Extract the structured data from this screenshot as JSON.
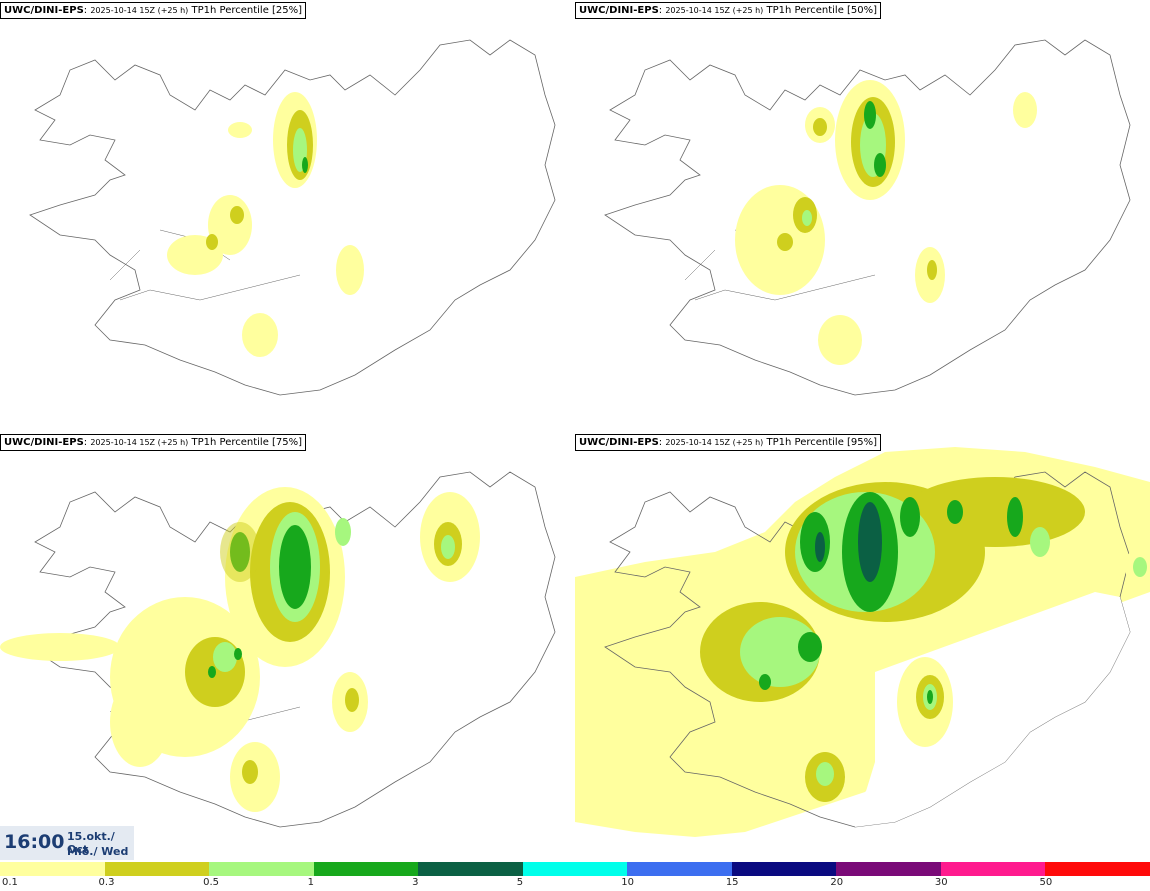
{
  "panels": [
    {
      "model": "UWC/DINI-EPS",
      "run": "2025-10-14 15Z (+25 h)",
      "field": "TP1h Percentile [25%]"
    },
    {
      "model": "UWC/DINI-EPS",
      "run": "2025-10-14 15Z (+25 h)",
      "field": "TP1h Percentile [50%]"
    },
    {
      "model": "UWC/DINI-EPS",
      "run": "2025-10-14 15Z (+25 h)",
      "field": "TP1h Percentile [75%]"
    },
    {
      "model": "UWC/DINI-EPS",
      "run": "2025-10-14 15Z (+25 h)",
      "field": "TP1h Percentile [95%]"
    }
  ],
  "valid_time": {
    "clock": "16:00",
    "date": "15.okt./ Oct",
    "day": "Mið./ Wed"
  },
  "legend": {
    "labels": [
      "0.1",
      "0.3",
      "0.5",
      "1",
      "3",
      "5",
      "10",
      "15",
      "20",
      "30",
      "50"
    ],
    "colors": [
      "#ffff9e",
      "#cfcf1e",
      "#a6f77e",
      "#17a81c",
      "#0b6044",
      "#00ffea",
      "#3c6ef0",
      "#0a0a80",
      "#7a0a78",
      "#ff1a8e",
      "#ff0a0a"
    ]
  },
  "map_colors": {
    "coast": "#666666",
    "l1": "#ffff9e",
    "l2": "#cfcf1e",
    "l3": "#a6f77e",
    "l4": "#17a81c",
    "l5": "#0b6044"
  }
}
